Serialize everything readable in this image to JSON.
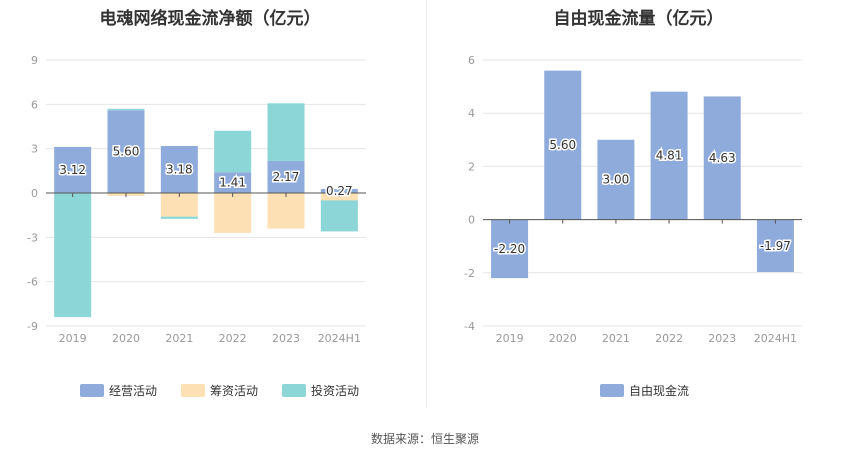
{
  "source_label": "数据来源：恒生聚源",
  "chart_data": [
    {
      "type": "bar",
      "stacked": true,
      "title": "电魂网络现金流净额（亿元）",
      "categories": [
        "2019",
        "2020",
        "2021",
        "2022",
        "2023",
        "2024H1"
      ],
      "ylim": [
        -9,
        9
      ],
      "yticks": [
        9,
        6,
        3,
        0,
        -3,
        -6,
        -9
      ],
      "grid": true,
      "legend_position": "bottom",
      "series": [
        {
          "name": "经营活动",
          "color": "#8eabdb",
          "values": [
            3.12,
            5.6,
            3.18,
            1.41,
            2.17,
            0.27
          ],
          "labels": [
            "3.12",
            "5.60",
            "3.18",
            "1.41",
            "2.17",
            "0.27"
          ]
        },
        {
          "name": "筹资活动",
          "color": "#fde0b4",
          "values": [
            0,
            -0.2,
            -1.6,
            -2.7,
            -2.4,
            -0.5
          ]
        },
        {
          "name": "投资活动",
          "color": "#8dd6d8",
          "values": [
            -8.4,
            0.1,
            -0.15,
            2.8,
            3.9,
            -2.1
          ]
        }
      ]
    },
    {
      "type": "bar",
      "title": "自由现金流量（亿元）",
      "categories": [
        "2019",
        "2020",
        "2021",
        "2022",
        "2023",
        "2024H1"
      ],
      "ylim": [
        -4,
        6
      ],
      "yticks": [
        6,
        4,
        2,
        0,
        -2,
        -4
      ],
      "grid": true,
      "legend_position": "bottom",
      "series": [
        {
          "name": "自由现金流",
          "color": "#8eabdb",
          "values": [
            -2.2,
            5.6,
            3.0,
            4.81,
            4.63,
            -1.97
          ],
          "labels": [
            "-2.20",
            "5.60",
            "3.00",
            "4.81",
            "4.63",
            "-1.97"
          ]
        }
      ]
    }
  ]
}
